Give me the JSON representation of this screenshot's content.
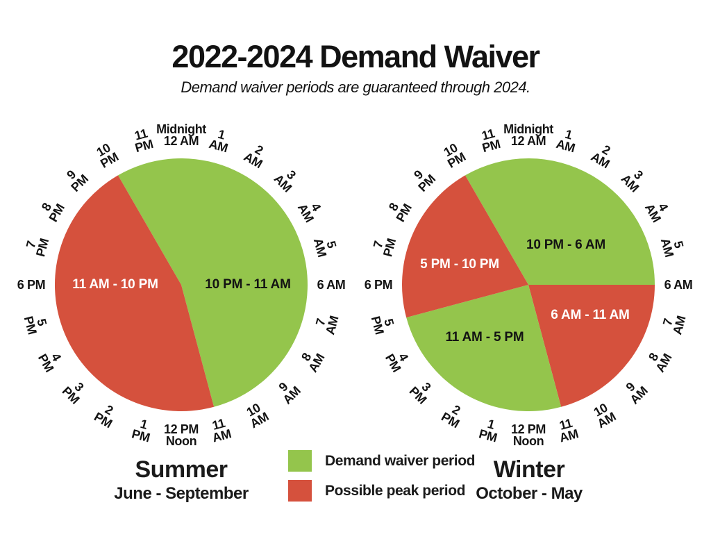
{
  "title": "2022-2024 Demand Waiver",
  "subtitle": "Demand waiver periods are guaranteed through 2024.",
  "colors": {
    "waiver_green": "#94c54c",
    "peak_red": "#d5513d",
    "text_dark": "#131313",
    "text_light": "#ffffff",
    "background": "#ffffff"
  },
  "legend": [
    {
      "label": "Demand waiver period",
      "color_key": "waiver_green"
    },
    {
      "label": "Possible peak period",
      "color_key": "peak_red"
    }
  ],
  "clock_hours": [
    {
      "hour": "12 AM",
      "angle": 0,
      "lines": [
        "Midnight",
        "12 AM"
      ]
    },
    {
      "hour": "1 AM",
      "angle": 15,
      "lines": [
        "1",
        "AM"
      ]
    },
    {
      "hour": "2 AM",
      "angle": 30,
      "lines": [
        "2",
        "AM"
      ]
    },
    {
      "hour": "3 AM",
      "angle": 45,
      "lines": [
        "3",
        "AM"
      ]
    },
    {
      "hour": "4 AM",
      "angle": 60,
      "lines": [
        "4",
        "AM"
      ]
    },
    {
      "hour": "5 AM",
      "angle": 75,
      "lines": [
        "5",
        "AM"
      ]
    },
    {
      "hour": "6 AM",
      "angle": 90,
      "lines": [
        "6 AM"
      ]
    },
    {
      "hour": "7 AM",
      "angle": 105,
      "lines": [
        "7",
        "AM"
      ]
    },
    {
      "hour": "8 AM",
      "angle": 120,
      "lines": [
        "8",
        "AM"
      ]
    },
    {
      "hour": "9 AM",
      "angle": 135,
      "lines": [
        "9",
        "AM"
      ]
    },
    {
      "hour": "10 AM",
      "angle": 150,
      "lines": [
        "10",
        "AM"
      ]
    },
    {
      "hour": "11 AM",
      "angle": 165,
      "lines": [
        "11",
        "AM"
      ]
    },
    {
      "hour": "12 PM",
      "angle": 180,
      "lines": [
        "12 PM",
        "Noon"
      ]
    },
    {
      "hour": "1 PM",
      "angle": 195,
      "lines": [
        "1",
        "PM"
      ]
    },
    {
      "hour": "2 PM",
      "angle": 210,
      "lines": [
        "2",
        "PM"
      ]
    },
    {
      "hour": "3 PM",
      "angle": 225,
      "lines": [
        "3",
        "PM"
      ]
    },
    {
      "hour": "4 PM",
      "angle": 240,
      "lines": [
        "4",
        "PM"
      ]
    },
    {
      "hour": "5 PM",
      "angle": 255,
      "lines": [
        "5",
        "PM"
      ]
    },
    {
      "hour": "6 PM",
      "angle": 270,
      "lines": [
        "6 PM"
      ]
    },
    {
      "hour": "7 PM",
      "angle": 285,
      "lines": [
        "7",
        "PM"
      ]
    },
    {
      "hour": "8 PM",
      "angle": 300,
      "lines": [
        "8",
        "PM"
      ]
    },
    {
      "hour": "9 PM",
      "angle": 315,
      "lines": [
        "9",
        "PM"
      ]
    },
    {
      "hour": "10 PM",
      "angle": 330,
      "lines": [
        "10",
        "PM"
      ]
    },
    {
      "hour": "11 PM",
      "angle": 345,
      "lines": [
        "11",
        "PM"
      ]
    }
  ],
  "chart_data": [
    {
      "type": "pie",
      "name": "summer",
      "title": "Summer",
      "subtitle": "June - September",
      "clock_format": "24-hour clock, midnight at top, clockwise",
      "segments": [
        {
          "label": "10 PM - 11 AM",
          "period": "Demand waiver period",
          "color_key": "waiver_green",
          "start": "10 PM",
          "end": "11 AM",
          "hours": 13,
          "start_angle": 330,
          "end_angle": 525,
          "label_xy": [
            96,
            -1
          ]
        },
        {
          "label": "11 AM - 10 PM",
          "period": "Possible peak period",
          "color_key": "peak_red",
          "start": "11 AM",
          "end": "10 PM",
          "hours": 11,
          "start_angle": 165,
          "end_angle": 330,
          "label_xy": [
            -95,
            -1
          ]
        }
      ]
    },
    {
      "type": "pie",
      "name": "winter",
      "title": "Winter",
      "subtitle": "October - May",
      "clock_format": "24-hour clock, midnight at top, clockwise",
      "segments": [
        {
          "label": "10 PM - 6 AM",
          "period": "Demand waiver period",
          "color_key": "waiver_green",
          "start": "10 PM",
          "end": "6 AM",
          "hours": 8,
          "start_angle": 330,
          "end_angle": 450,
          "label_xy": [
            54,
            -58
          ]
        },
        {
          "label": "6 AM - 11 AM",
          "period": "Possible peak period",
          "color_key": "peak_red",
          "start": "6 AM",
          "end": "11 AM",
          "hours": 5,
          "start_angle": 90,
          "end_angle": 165,
          "label_xy": [
            89,
            43
          ]
        },
        {
          "label": "11 AM - 5 PM",
          "period": "Demand waiver period",
          "color_key": "waiver_green",
          "start": "11 AM",
          "end": "5 PM",
          "hours": 6,
          "start_angle": 165,
          "end_angle": 255,
          "label_xy": [
            -63,
            75
          ]
        },
        {
          "label": "5 PM - 10 PM",
          "period": "Possible peak period",
          "color_key": "peak_red",
          "start": "5 PM",
          "end": "10 PM",
          "hours": 5,
          "start_angle": 255,
          "end_angle": 330,
          "label_xy": [
            -99,
            -30
          ]
        }
      ]
    }
  ]
}
